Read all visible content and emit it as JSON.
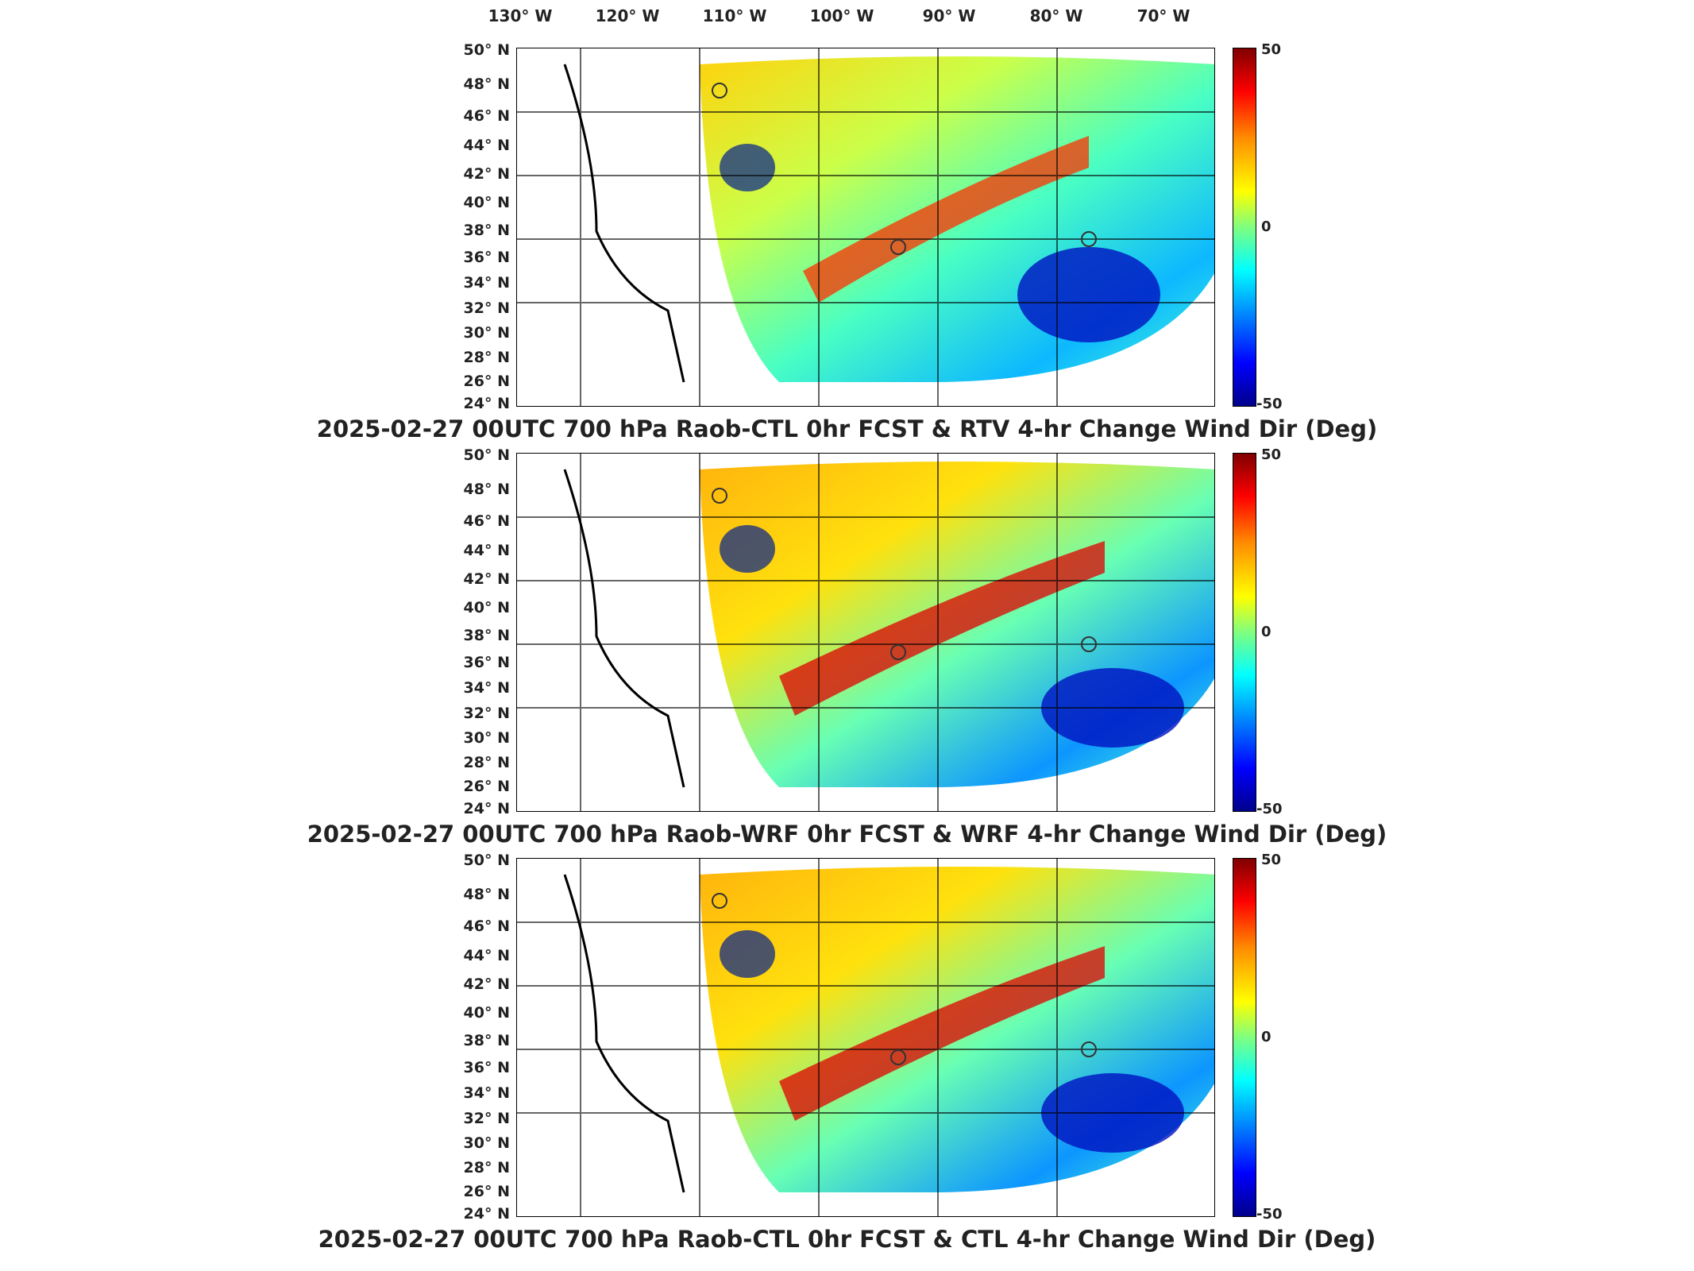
{
  "lon_labels": [
    "130° W",
    "120° W",
    "110° W",
    "100° W",
    "90° W",
    "80° W",
    "70° W"
  ],
  "lat_labels": [
    "50° N",
    "48° N",
    "46° N",
    "44° N",
    "42° N",
    "40° N",
    "38° N",
    "36° N",
    "34° N",
    "32° N",
    "30° N",
    "28° N",
    "26° N",
    "24° N"
  ],
  "colorbar": {
    "max_label": "50",
    "mid_label": "0",
    "min_label": "-50",
    "colormap": [
      "#800000",
      "#ff0000",
      "#ff8c00",
      "#ffff00",
      "#7fff7f",
      "#00ffff",
      "#0080ff",
      "#0000ff",
      "#00008b"
    ]
  },
  "panels": [
    {
      "title": "2025-02-27 00UTC 700 hPa Raob-CTL 0hr FCST & RTV 4-hr Change Wind Dir (Deg)"
    },
    {
      "title": "2025-02-27 00UTC 700 hPa Raob-WRF 0hr FCST & WRF 4-hr Change Wind Dir (Deg)"
    },
    {
      "title": "2025-02-27 00UTC 700 hPa Raob-CTL 0hr FCST & CTL 4-hr Change Wind Dir (Deg)"
    }
  ],
  "map_extent": {
    "lon_range": [
      -130,
      -65
    ],
    "lat_range": [
      24,
      50
    ]
  }
}
